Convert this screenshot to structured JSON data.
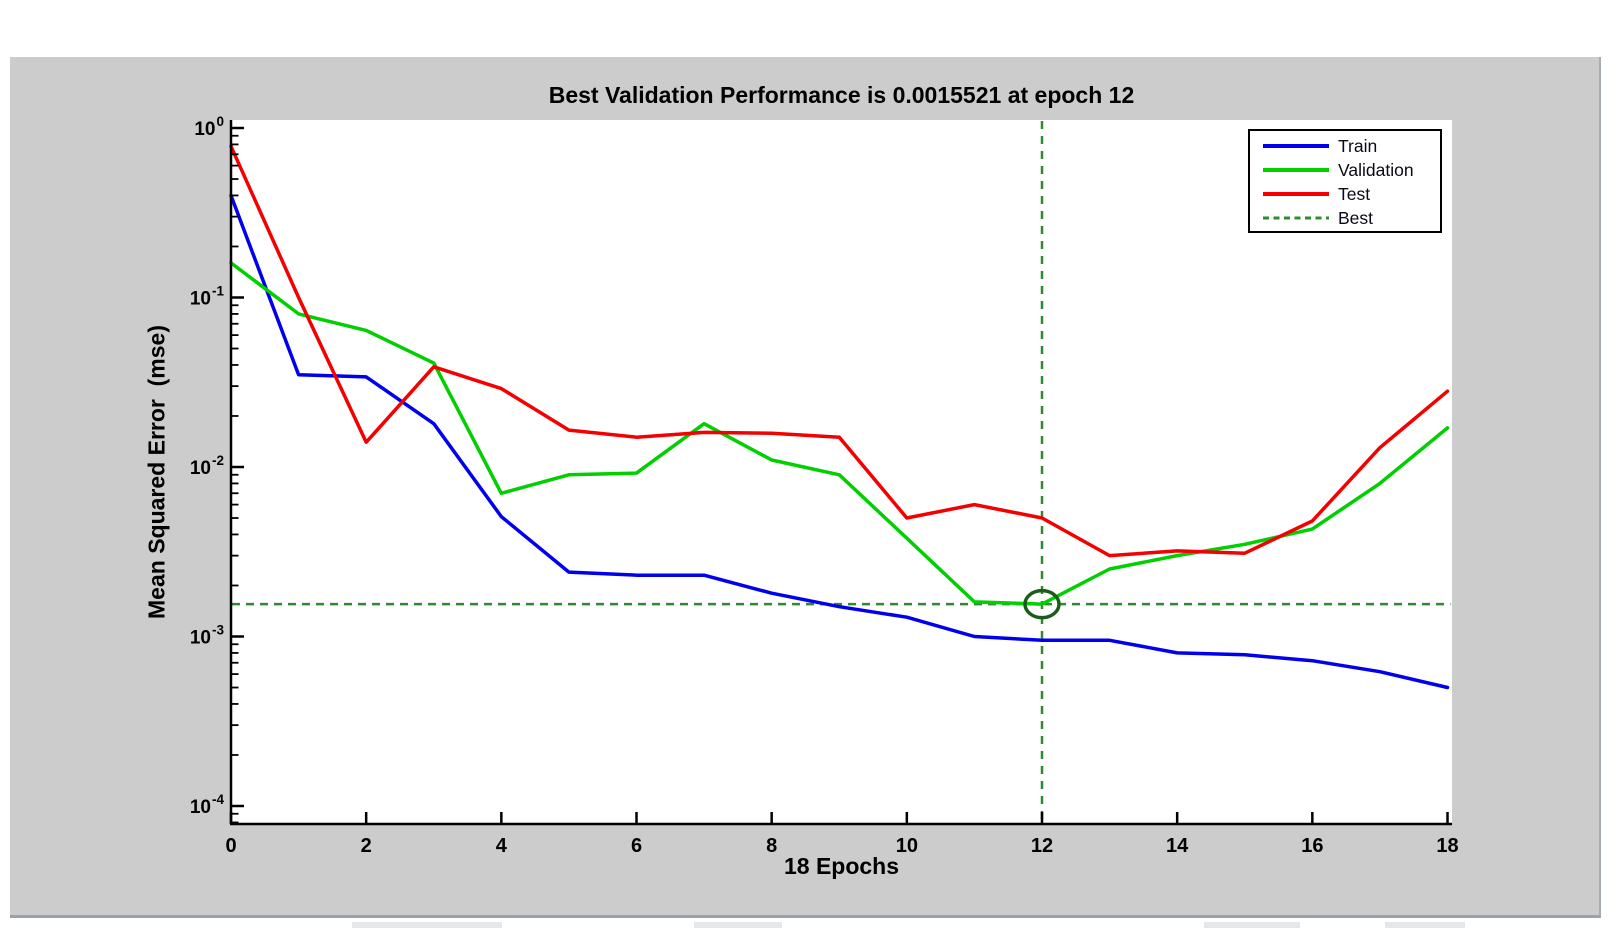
{
  "chart_data": {
    "type": "line",
    "title": "Best Validation Performance is 0.0015521 at epoch 12",
    "xlabel": "18 Epochs",
    "ylabel": "Mean Squared Error  (mse)",
    "x_scale": "linear",
    "y_scale": "log",
    "xlim": [
      0,
      18
    ],
    "ylim": [
      0.0001,
      1
    ],
    "x_ticks": [
      0,
      2,
      4,
      6,
      8,
      10,
      12,
      14,
      16,
      18
    ],
    "y_tick_exponents": [
      0,
      -1,
      -2,
      -3,
      -4
    ],
    "grid": false,
    "legend_position": "northeast",
    "x": [
      0,
      1,
      2,
      3,
      4,
      5,
      6,
      7,
      8,
      9,
      10,
      11,
      12,
      13,
      14,
      15,
      16,
      17,
      18
    ],
    "series": [
      {
        "name": "Train",
        "color": "#0000ee",
        "values": [
          0.4,
          0.035,
          0.034,
          0.018,
          0.0051,
          0.0024,
          0.0023,
          0.0023,
          0.0018,
          0.0015,
          0.0013,
          0.001,
          0.00095,
          0.00095,
          0.0008,
          0.00078,
          0.00072,
          0.00062,
          0.0005
        ]
      },
      {
        "name": "Validation",
        "color": "#00cf00",
        "values": [
          0.16,
          0.08,
          0.064,
          0.041,
          0.007,
          0.009,
          0.0092,
          0.018,
          0.011,
          0.009,
          0.0038,
          0.0016,
          0.0015521,
          0.0025,
          0.003,
          0.0035,
          0.0043,
          0.008,
          0.017
        ]
      },
      {
        "name": "Test",
        "color": "#f40000",
        "values": [
          0.78,
          0.1,
          0.014,
          0.039,
          0.029,
          0.0165,
          0.015,
          0.016,
          0.0158,
          0.015,
          0.005,
          0.006,
          0.005,
          0.003,
          0.0032,
          0.0031,
          0.0048,
          0.013,
          0.028
        ]
      }
    ],
    "best": {
      "label": "Best",
      "epoch": 12,
      "value": 0.0015521,
      "line_color": "#2e8b2e",
      "marker_color": "#1a5c1a"
    }
  },
  "legend": {
    "entries": [
      {
        "label": "Train",
        "color": "#0000ee",
        "dash": false
      },
      {
        "label": "Validation",
        "color": "#00cf00",
        "dash": false
      },
      {
        "label": "Test",
        "color": "#f40000",
        "dash": false
      },
      {
        "label": "Best",
        "color": "#2e8b2e",
        "dash": true
      }
    ]
  },
  "figure": {
    "background": "#cccccc",
    "plot_background": "#ffffff",
    "axis_color": "#000000",
    "text_color": "#000000"
  }
}
